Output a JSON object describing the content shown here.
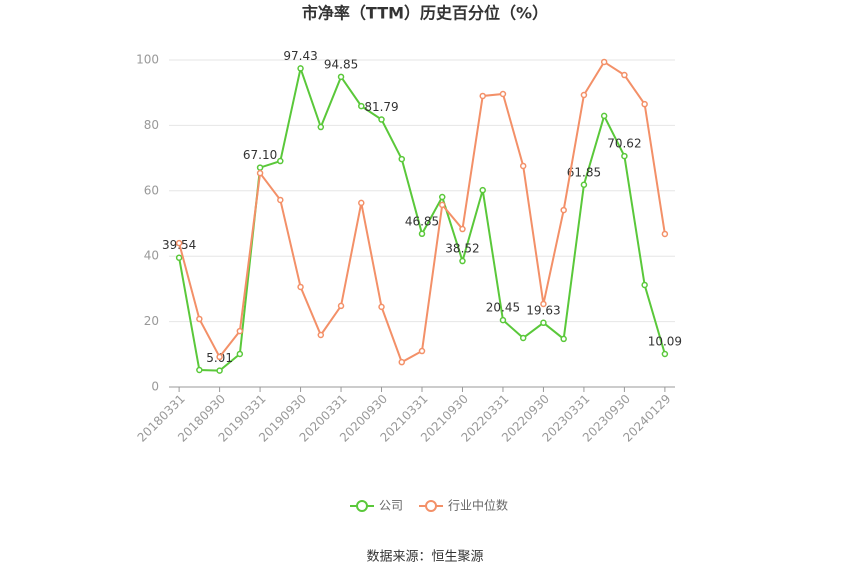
{
  "chart_data": {
    "type": "line",
    "title": "市净率（TTM）历史百分位（%）",
    "source": "数据来源：恒生聚源",
    "categories": [
      "20180331",
      null,
      "20180930",
      null,
      "20190331",
      null,
      "20190930",
      null,
      "20200331",
      null,
      "20200930",
      null,
      "20210331",
      null,
      "20210930",
      null,
      "20220331",
      null,
      "20220930",
      null,
      "20230331",
      null,
      "20230930",
      null,
      "20240129"
    ],
    "series": [
      {
        "name": "公司",
        "color": "#5ac83a",
        "values": [
          39.54,
          5.2,
          5.01,
          10.1,
          67.1,
          69.1,
          97.43,
          79.5,
          94.85,
          85.9,
          81.79,
          69.7,
          46.85,
          58.1,
          38.52,
          60.2,
          20.45,
          15.0,
          19.63,
          14.7,
          61.85,
          82.9,
          70.62,
          31.2,
          10.09
        ],
        "value_labels": [
          "39.54",
          null,
          "5.01",
          null,
          "67.10",
          null,
          "97.43",
          null,
          "94.85",
          null,
          "81.79",
          null,
          "46.85",
          null,
          "38.52",
          null,
          "20.45",
          null,
          "19.63",
          null,
          "61.85",
          null,
          "70.62",
          null,
          "10.09"
        ]
      },
      {
        "name": "行业中位数",
        "color": "#f39068",
        "values": [
          44.0,
          20.8,
          9.2,
          17.1,
          65.4,
          57.2,
          30.6,
          15.9,
          24.8,
          56.3,
          24.5,
          7.6,
          11.0,
          55.7,
          48.3,
          89.0,
          89.6,
          67.6,
          25.4,
          54.1,
          89.3,
          99.4,
          95.4,
          86.5,
          46.8
        ]
      }
    ],
    "ylim": [
      0,
      100
    ],
    "yticks": [
      0,
      20,
      40,
      60,
      80,
      100
    ],
    "grid": true
  }
}
